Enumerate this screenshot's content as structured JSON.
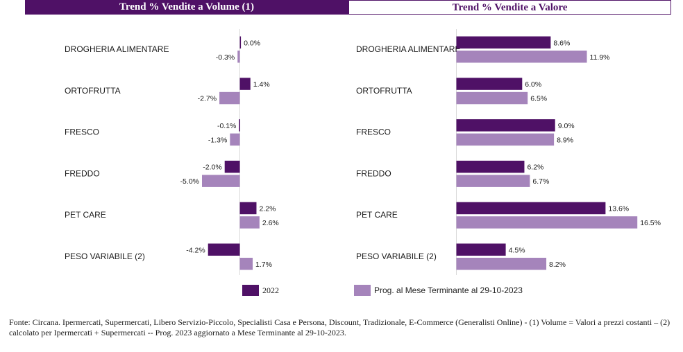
{
  "headers": {
    "left": "Trend % Vendite a Volume (1)",
    "right": "Trend % Vendite a Valore"
  },
  "colors": {
    "series_2022": "#4f1166",
    "series_prog": "#a584bb"
  },
  "legend": {
    "series_2022": "2022",
    "series_prog": "Prog. al Mese Terminante al 29-10-2023"
  },
  "footer": "Fonte: Circana. Ipermercati, Supermercati, Libero Servizio-Piccolo, Specialisti Casa e Persona, Discount, Tradizionale, E-Commerce (Generalisti Online) - (1) Volume = Valori a prezzi costanti – (2) calcolato per Ipermercati + Supermercati -- Prog. 2023 aggiornato a Mese Terminante al 29-10-2023.",
  "chart_data": [
    {
      "type": "bar",
      "orientation": "horizontal",
      "title": "Trend % Vendite a Volume (1)",
      "categories": [
        "DROGHERIA ALIMENTARE",
        "ORTOFRUTTA",
        "FRESCO",
        "FREDDO",
        "PET CARE",
        "PESO VARIABILE (2)"
      ],
      "series": [
        {
          "name": "2022",
          "values": [
            0.0,
            1.4,
            -0.1,
            -2.0,
            2.2,
            -4.2
          ],
          "labels": [
            "0.0%",
            "1.4%",
            "-0.1%",
            "-2.0%",
            "2.2%",
            "-4.2%"
          ]
        },
        {
          "name": "Prog. al Mese Terminante al 29-10-2023",
          "values": [
            -0.3,
            -2.7,
            -1.3,
            -5.0,
            2.6,
            1.7
          ],
          "labels": [
            "-0.3%",
            "-2.7%",
            "-1.3%",
            "-5.0%",
            "2.6%",
            "1.7%"
          ]
        }
      ],
      "grid": false
    },
    {
      "type": "bar",
      "orientation": "horizontal",
      "title": "Trend % Vendite a Valore",
      "categories": [
        "DROGHERIA ALIMENTARE",
        "ORTOFRUTTA",
        "FRESCO",
        "FREDDO",
        "PET CARE",
        "PESO VARIABILE (2)"
      ],
      "series": [
        {
          "name": "2022",
          "values": [
            8.6,
            6.0,
            9.0,
            6.2,
            13.6,
            4.5
          ],
          "labels": [
            "8.6%",
            "6.0%",
            "9.0%",
            "6.2%",
            "13.6%",
            "4.5%"
          ]
        },
        {
          "name": "Prog. al Mese Terminante al 29-10-2023",
          "values": [
            11.9,
            6.5,
            8.9,
            6.7,
            16.5,
            8.2
          ],
          "labels": [
            "11.9%",
            "6.5%",
            "8.9%",
            "6.7%",
            "16.5%",
            "8.2%"
          ]
        }
      ],
      "grid": false
    }
  ]
}
